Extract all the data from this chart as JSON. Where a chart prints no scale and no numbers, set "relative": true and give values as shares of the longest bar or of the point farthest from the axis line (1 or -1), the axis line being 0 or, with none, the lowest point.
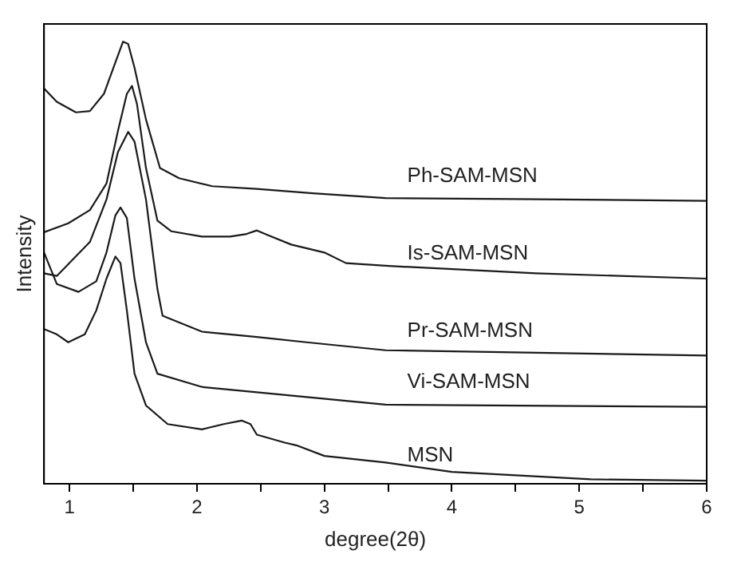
{
  "chart_data": {
    "type": "line",
    "relative": true,
    "xlabel": "degree(2θ)",
    "ylabel": "Intensity",
    "xlim": [
      0.8,
      6
    ],
    "xticks": [
      1,
      {
        "value": 1.5,
        "label": null
      },
      2,
      {
        "value": 2.5,
        "label": null
      },
      3,
      {
        "value": 3.5,
        "label": null
      },
      4,
      {
        "value": 4.5,
        "label": null
      },
      5,
      {
        "value": 5.5,
        "label": null
      },
      6
    ],
    "grid": false,
    "legend": false,
    "marker": "none",
    "line_style": "solid",
    "series": [
      {
        "name": "Ph-SAM-MSN",
        "color": "#1a1a1a",
        "x": [
          0.8,
          0.9,
          1.05,
          1.16,
          1.27,
          1.36,
          1.42,
          1.46,
          1.51,
          1.6,
          1.71,
          1.86,
          2.12,
          2.47,
          2.91,
          3.48,
          4.5,
          6
        ],
        "values": [
          0.894,
          0.864,
          0.84,
          0.843,
          0.882,
          0.953,
          1,
          0.995,
          0.941,
          0.824,
          0.714,
          0.691,
          0.673,
          0.667,
          0.657,
          0.646,
          0.644,
          0.64
        ]
      },
      {
        "name": "Is-SAM-MSN",
        "color": "#1a1a1a",
        "x": [
          0.8,
          0.99,
          1.16,
          1.29,
          1.38,
          1.45,
          1.49,
          1.53,
          1.6,
          1.69,
          1.8,
          2.04,
          2.26,
          2.39,
          2.47,
          2.56,
          2.74,
          3.0,
          3.17,
          3.48,
          4.66,
          6
        ],
        "values": [
          0.569,
          0.589,
          0.619,
          0.679,
          0.798,
          0.882,
          0.9,
          0.858,
          0.714,
          0.595,
          0.571,
          0.559,
          0.559,
          0.565,
          0.573,
          0.562,
          0.541,
          0.523,
          0.499,
          0.493,
          0.476,
          0.464
        ]
      },
      {
        "name": "Pr-SAM-MSN",
        "color": "#1a1a1a",
        "x": [
          0.8,
          0.9,
          1.16,
          1.29,
          1.38,
          1.46,
          1.51,
          1.6,
          1.69,
          1.73,
          2.04,
          2.47,
          2.86,
          3.48,
          6
        ],
        "values": [
          0.476,
          0.47,
          0.547,
          0.643,
          0.75,
          0.796,
          0.774,
          0.643,
          0.44,
          0.38,
          0.344,
          0.332,
          0.32,
          0.302,
          0.29
        ]
      },
      {
        "name": "Vi-SAM-MSN",
        "color": "#1a1a1a",
        "x": [
          0.8,
          0.9,
          1.07,
          1.21,
          1.29,
          1.36,
          1.4,
          1.45,
          1.51,
          1.6,
          1.69,
          2.04,
          2.47,
          3.48,
          6
        ],
        "values": [
          0.523,
          0.452,
          0.434,
          0.458,
          0.523,
          0.607,
          0.625,
          0.601,
          0.464,
          0.32,
          0.249,
          0.219,
          0.207,
          0.179,
          0.174
        ]
      },
      {
        "name": "MSN",
        "color": "#1a1a1a",
        "x": [
          0.8,
          0.9,
          0.99,
          1.12,
          1.21,
          1.29,
          1.36,
          1.4,
          1.45,
          1.51,
          1.6,
          1.77,
          2.04,
          2.21,
          2.35,
          2.42,
          2.47,
          2.69,
          2.78,
          3.0,
          3.48,
          4.0,
          5.09,
          6.0
        ],
        "values": [
          0.35,
          0.338,
          0.32,
          0.338,
          0.392,
          0.464,
          0.514,
          0.499,
          0.392,
          0.249,
          0.177,
          0.135,
          0.123,
          0.135,
          0.143,
          0.135,
          0.111,
          0.093,
          0.087,
          0.063,
          0.048,
          0.027,
          0.01,
          0.007
        ]
      }
    ]
  }
}
